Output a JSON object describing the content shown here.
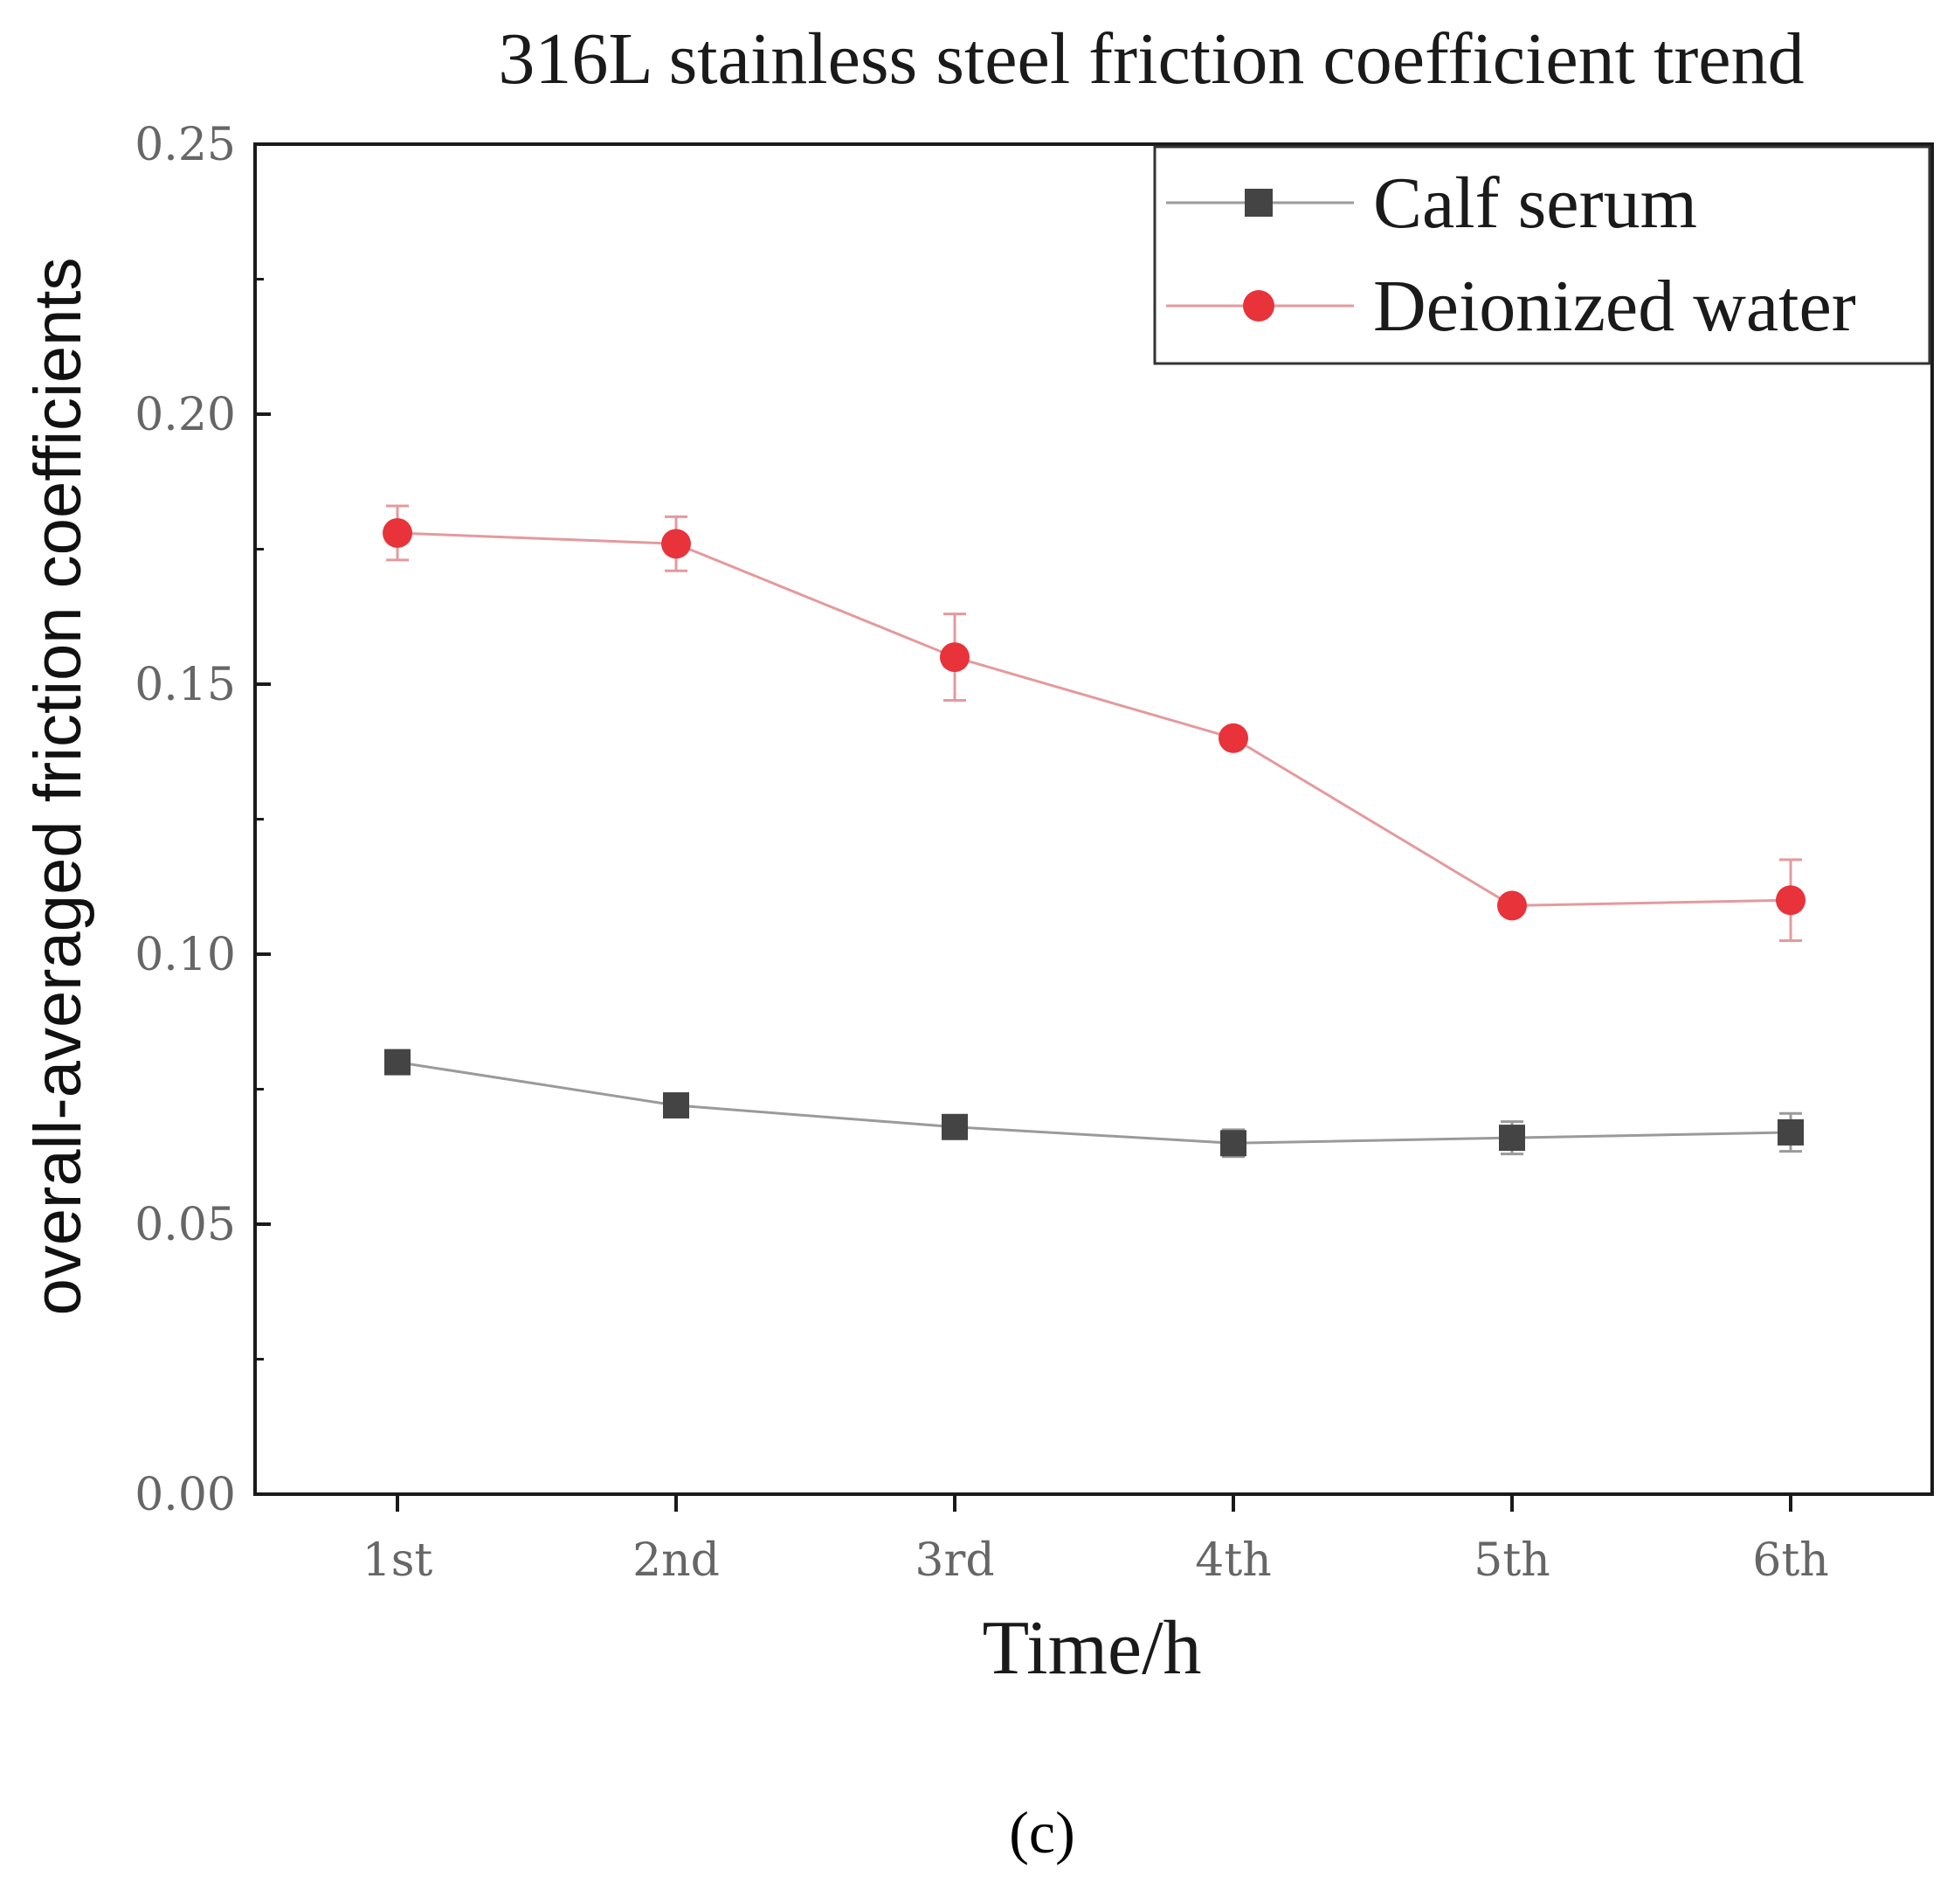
{
  "chart_data": {
    "type": "line",
    "title": "316L stainless steel friction coefficient trend",
    "xlabel": "Time/h",
    "ylabel": "overall-averaged friction coefficients",
    "categories": [
      "1st",
      "2nd",
      "3rd",
      "4th",
      "5th",
      "6th"
    ],
    "ylim": [
      0,
      0.25
    ],
    "yticks": [
      0,
      0.05,
      0.1,
      0.15,
      0.2,
      0.25
    ],
    "ytick_labels": [
      "0.00",
      "0.05",
      "0.10",
      "0.15",
      "0.20",
      "0.25"
    ],
    "legend_position": "top-right",
    "grid": false,
    "series": [
      {
        "name": "Calf serum",
        "marker": "square",
        "color": "#444444",
        "line_color": "#9a9a9a",
        "values": [
          0.08,
          0.072,
          0.068,
          0.065,
          0.066,
          0.067
        ],
        "errors": [
          0.0015,
          0.0015,
          0.0015,
          0.0025,
          0.003,
          0.0035
        ]
      },
      {
        "name": "Deionized water",
        "marker": "circle",
        "color": "#e8333b",
        "line_color": "#e49a9d",
        "values": [
          0.178,
          0.176,
          0.155,
          0.14,
          0.109,
          0.11
        ],
        "errors": [
          0.005,
          0.005,
          0.008,
          0.0012,
          0.0015,
          0.0075
        ]
      }
    ]
  },
  "caption": "(c)"
}
